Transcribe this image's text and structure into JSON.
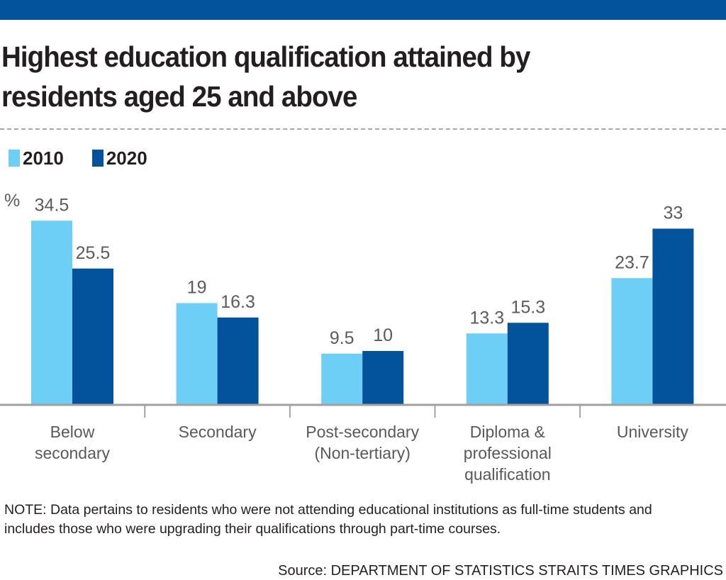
{
  "title": "Highest education qualification attained by residents aged 25 and above",
  "title_lines": [
    "Highest education qualification attained by",
    "residents aged 25 and above"
  ],
  "legend": [
    {
      "label": "2010",
      "color": "#6dcff6"
    },
    {
      "label": "2020",
      "color": "#02529c"
    }
  ],
  "note": "NOTE: Data pertains to residents who were not attending educational institutions as full-time students and includes those who were upgrading their qualifications through part-time courses.",
  "source": "Source: DEPARTMENT OF STATISTICS   STRAITS TIMES GRAPHICS",
  "chart_data": {
    "type": "bar",
    "title": "Highest education qualification attained by residents aged 25 and above",
    "xlabel": "",
    "ylabel": "%",
    "ylim": [
      0,
      35
    ],
    "grid": false,
    "legend_position": "top-left",
    "categories": [
      {
        "lines": [
          "Below",
          "secondary"
        ]
      },
      {
        "lines": [
          "Secondary"
        ]
      },
      {
        "lines": [
          "Post-secondary",
          "(Non-tertiary)"
        ]
      },
      {
        "lines": [
          "Diploma &",
          "professional",
          "qualification"
        ]
      },
      {
        "lines": [
          "University"
        ]
      }
    ],
    "category_names": [
      "Below secondary",
      "Secondary",
      "Post-secondary (Non-tertiary)",
      "Diploma & professional qualification",
      "University"
    ],
    "series": [
      {
        "name": "2010",
        "color": "#6dcff6",
        "values": [
          34.5,
          19,
          9.5,
          13.3,
          23.7
        ],
        "labels": [
          "34.5",
          "19",
          "9.5",
          "13.3",
          "23.7"
        ]
      },
      {
        "name": "2020",
        "color": "#02529c",
        "values": [
          25.5,
          16.3,
          10,
          15.3,
          33
        ],
        "labels": [
          "25.5",
          "16.3",
          "10",
          "15.3",
          "33"
        ]
      }
    ]
  }
}
